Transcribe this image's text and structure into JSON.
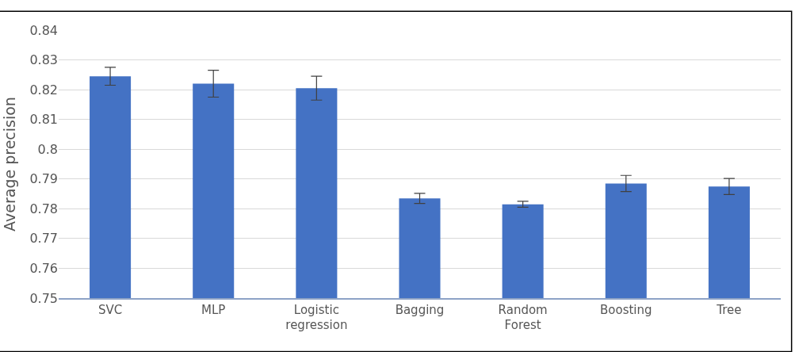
{
  "chart_data": {
    "type": "bar",
    "ylabel": "Average precision",
    "categories": [
      "SVC",
      "MLP",
      "Logistic regression",
      "Bagging",
      "Random Forest",
      "Boosting",
      "Tree"
    ],
    "values": [
      0.8245,
      0.822,
      0.8205,
      0.7835,
      0.7815,
      0.7885,
      0.7875
    ],
    "errors": [
      0.003,
      0.0045,
      0.004,
      0.0017,
      0.001,
      0.0027,
      0.0027
    ],
    "color": "#4472c4",
    "ylim": [
      0.75,
      0.84
    ],
    "yticks": [
      0.75,
      0.76,
      0.77,
      0.78,
      0.79,
      0.8,
      0.81,
      0.82,
      0.83,
      0.84
    ],
    "grid": "y",
    "legend": false
  }
}
